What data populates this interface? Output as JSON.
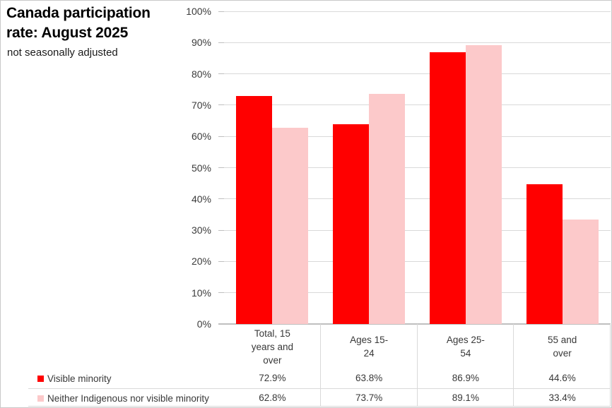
{
  "header": {
    "title": "Canada participation rate: August 2025",
    "subtitle": "not seasonally adjusted"
  },
  "colors": {
    "series_visible_minority": "#FF0000",
    "series_neither": "#FCC9CA",
    "gridline": "#D9D9D9",
    "axis_line": "#BFBFBF",
    "table_line": "#D9D9D9",
    "text": "#383838"
  },
  "chart_data": {
    "type": "bar",
    "title": "Canada participation rate: August 2025",
    "subtitle": "not seasonally adjusted",
    "categories": [
      "Total, 15 years and over",
      "Ages 15-24",
      "Ages 25-54",
      "55 and over"
    ],
    "category_label_lines": [
      [
        "Total, 15",
        "years and",
        "over"
      ],
      [
        "Ages 15-",
        "24"
      ],
      [
        "Ages 25-",
        "54"
      ],
      [
        "55 and",
        "over"
      ]
    ],
    "series": [
      {
        "name": "Visible minority",
        "color": "#FF0000",
        "values": [
          72.9,
          63.8,
          86.9,
          44.6
        ]
      },
      {
        "name": "Neither Indigenous nor visible minority",
        "color": "#FCC9CA",
        "values": [
          62.8,
          73.7,
          89.1,
          33.4
        ]
      }
    ],
    "xlabel": "",
    "ylabel": "",
    "ylim": [
      0,
      100
    ],
    "ytick_step": 10,
    "ytick_suffix": "%",
    "ytick_labels": [
      "0%",
      "10%",
      "20%",
      "30%",
      "40%",
      "50%",
      "60%",
      "70%",
      "80%",
      "90%",
      "100%"
    ],
    "grid": true,
    "legend_position": "bottom-left-data-table",
    "data_table_values": [
      [
        "72.9%",
        "63.8%",
        "86.9%",
        "44.6%"
      ],
      [
        "62.8%",
        "73.7%",
        "89.1%",
        "33.4%"
      ]
    ]
  }
}
